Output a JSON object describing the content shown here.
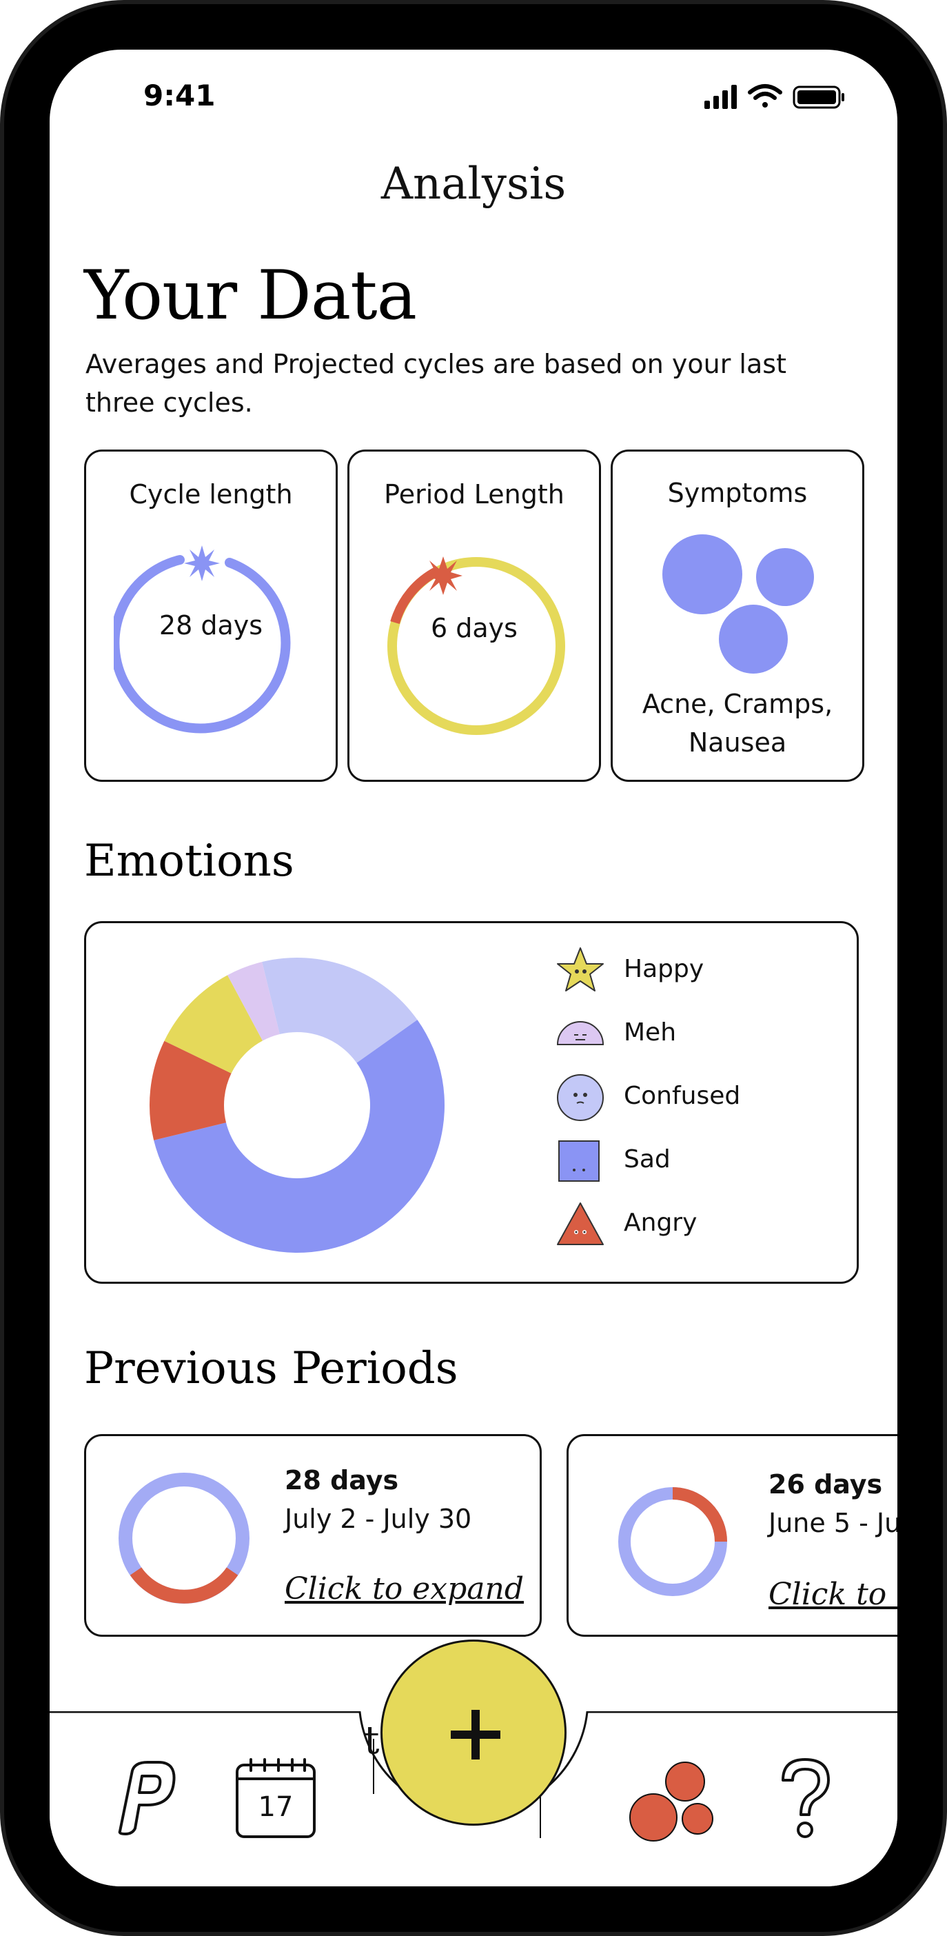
{
  "status_bar": {
    "time": "9:41"
  },
  "header": {
    "title": "Analysis"
  },
  "your_data": {
    "heading": "Your Data",
    "subtitle": "Averages and Projected cycles are based on your last three cycles."
  },
  "summary_cards": {
    "cycle": {
      "title": "Cycle length",
      "value": "28 days"
    },
    "period": {
      "title": "Period Length",
      "value": "6 days"
    },
    "symptoms": {
      "title": "Symptoms",
      "value": "Acne, Cramps, Nausea"
    }
  },
  "emotions": {
    "heading": "Emotions",
    "legend": [
      {
        "label": "Happy",
        "icon": "star-face-icon",
        "color": "#e5d95a"
      },
      {
        "label": "Meh",
        "icon": "half-circle-face-icon",
        "color": "#dcc8f2"
      },
      {
        "label": "Confused",
        "icon": "circle-face-icon",
        "color": "#c3c8f7"
      },
      {
        "label": "Sad",
        "icon": "square-face-icon",
        "color": "#8a94f4"
      },
      {
        "label": "Angry",
        "icon": "triangle-face-icon",
        "color": "#d95d43"
      }
    ]
  },
  "chart_data": {
    "type": "pie",
    "title": "",
    "series": [
      {
        "values": [
          {
            "label": "Confused",
            "value": 19,
            "color": "#c3c8f7"
          },
          {
            "label": "Sad",
            "value": 56,
            "color": "#8a94f4"
          },
          {
            "label": "Angry",
            "value": 11,
            "color": "#d95d43"
          },
          {
            "label": "Happy",
            "value": 10,
            "color": "#e5d95a"
          },
          {
            "label": "Meh",
            "value": 4,
            "color": "#dcc8f2"
          }
        ]
      }
    ],
    "legend_position": "right"
  },
  "previous_periods": {
    "heading": "Previous Periods",
    "items": [
      {
        "days": "28 days",
        "range": "July 2 - July 30",
        "link": "Click to expand"
      },
      {
        "days": "26 days",
        "range": "June 5 - Ju",
        "link": "Click to e"
      }
    ]
  },
  "tabbar": {
    "calendar_day": "17",
    "add_symbol": "+",
    "help_symbol": "?",
    "logo_letter": "P",
    "peek_text": "t"
  },
  "colors": {
    "accent_blue": "#8a94f4",
    "accent_yellow": "#e5d95a",
    "accent_red": "#d95d43",
    "light_blue": "#c3c8f7",
    "lavender": "#dcc8f2"
  }
}
